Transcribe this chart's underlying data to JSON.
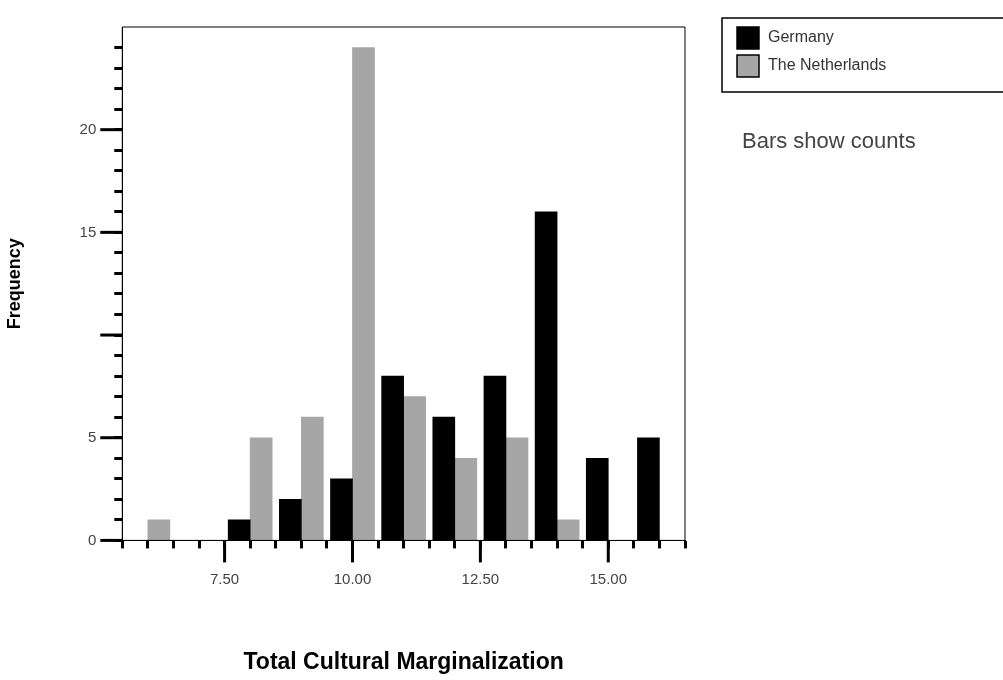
{
  "chart_data": {
    "type": "bar",
    "xlabel": "Total Cultural Marginalization",
    "ylabel": "Frequency",
    "x": [
      6,
      7,
      8,
      9,
      10,
      11,
      12,
      13,
      14,
      15,
      16
    ],
    "series": [
      {
        "name": "Germany",
        "color": "#000000",
        "values": [
          0,
          0,
          1,
          2,
          3,
          8,
          6,
          8,
          16,
          4,
          5
        ]
      },
      {
        "name": "The Netherlands",
        "color": "#a6a6a6",
        "values": [
          1,
          0,
          5,
          6,
          24,
          7,
          4,
          5,
          1,
          0,
          0
        ]
      }
    ],
    "xlim": [
      5.5,
      16.5
    ],
    "xticks": [
      {
        "value": 5.5,
        "label": null
      },
      {
        "value": 6,
        "label": null
      },
      {
        "value": 6.5,
        "label": null
      },
      {
        "value": 7,
        "label": null
      },
      {
        "value": 7.5,
        "label": "7.50"
      },
      {
        "value": 8,
        "label": null
      },
      {
        "value": 8.5,
        "label": null
      },
      {
        "value": 9,
        "label": null
      },
      {
        "value": 9.5,
        "label": null
      },
      {
        "value": 10,
        "label": "10.00"
      },
      {
        "value": 10.5,
        "label": null
      },
      {
        "value": 11,
        "label": null
      },
      {
        "value": 11.5,
        "label": null
      },
      {
        "value": 12,
        "label": null
      },
      {
        "value": 12.5,
        "label": "12.50"
      },
      {
        "value": 13,
        "label": null
      },
      {
        "value": 13.5,
        "label": null
      },
      {
        "value": 14,
        "label": null
      },
      {
        "value": 14.5,
        "label": null
      },
      {
        "value": 15,
        "label": "15.00"
      },
      {
        "value": 15.5,
        "label": null
      },
      {
        "value": 16,
        "label": null
      },
      {
        "value": 16.5,
        "label": null
      }
    ],
    "ylim": [
      0,
      25
    ],
    "yticks": [
      0,
      {
        "value": 1,
        "label": null
      },
      {
        "value": 2,
        "label": null
      },
      {
        "value": 3,
        "label": null
      },
      {
        "value": 4,
        "label": null
      },
      5,
      {
        "value": 6,
        "label": null
      },
      {
        "value": 7,
        "label": null
      },
      {
        "value": 8,
        "label": null
      },
      {
        "value": 9,
        "label": null
      },
      {
        "value": 10,
        "label": null
      },
      {
        "value": 11,
        "label": null
      },
      {
        "value": 12,
        "label": null
      },
      {
        "value": 13,
        "label": null
      },
      {
        "value": 14,
        "label": null
      },
      15,
      {
        "value": 16,
        "label": null
      },
      {
        "value": 17,
        "label": null
      },
      {
        "value": 18,
        "label": null
      },
      {
        "value": 19,
        "label": null
      },
      20,
      {
        "value": 21,
        "label": null
      },
      {
        "value": 22,
        "label": null
      },
      {
        "value": 23,
        "label": null
      },
      {
        "value": 24,
        "label": null
      }
    ],
    "grid": false,
    "legend": "top right",
    "annotations": [
      "Bars show counts"
    ]
  }
}
